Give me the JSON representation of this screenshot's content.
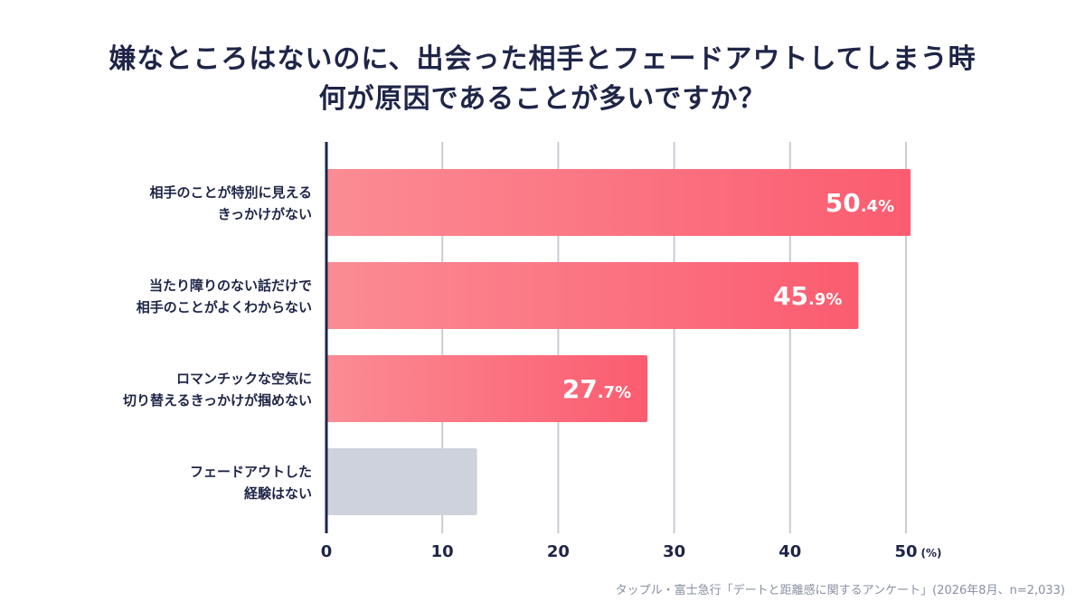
{
  "title": {
    "line1": "嫌なところはないのに、出会った相手とフェードアウトしてしまう時",
    "line2": "何が原因であることが多いですか？"
  },
  "source": "タップル・富士急行「デートと距離感に関するアンケート」(2026年8月、n=2,033)",
  "colors": {
    "bar_start": "#fb8c94",
    "bar_end": "#fb5c70",
    "bar_neutral": "#cdd2dc",
    "axis": "#1f2547",
    "grid": "#c9ccd6",
    "label_text": "#1f2547",
    "value_text": "#ffffff"
  },
  "chart_data": {
    "type": "bar",
    "orientation": "horizontal",
    "categories": [
      [
        "相手のことが特別に見える",
        "きっかけがない"
      ],
      [
        "当たり障りのない話だけで",
        "相手のことがよくわからない"
      ],
      [
        "ロマンチックな空気に",
        "切り替えるきっかけが掴めない"
      ],
      [
        "フェードアウトした",
        "経験はない"
      ]
    ],
    "values": [
      50.4,
      45.9,
      27.7,
      13.0
    ],
    "value_labels": [
      {
        "main": "50",
        "decimal": ".4%"
      },
      {
        "main": "45",
        "decimal": ".9%"
      },
      {
        "main": "27",
        "decimal": ".7%"
      },
      null
    ],
    "highlight": [
      true,
      true,
      true,
      false
    ],
    "xlim": [
      0,
      50
    ],
    "xticks": [
      0,
      10,
      20,
      30,
      40,
      50
    ],
    "xtick_labels": [
      "0",
      "10",
      "20",
      "30",
      "40",
      "50"
    ],
    "x_unit": "(%)",
    "grid": true
  }
}
